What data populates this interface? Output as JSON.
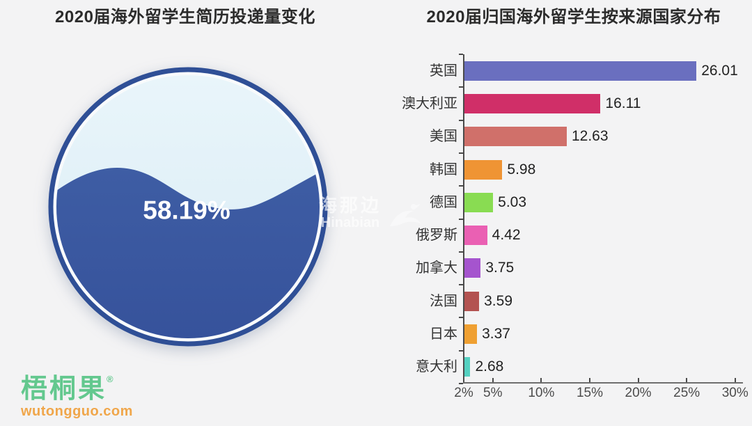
{
  "page": {
    "background_color": "#f3f3f4"
  },
  "chart_data": [
    {
      "type": "gauge",
      "subtype": "liquid-fill",
      "title": "2020届海外留学生简历投递量变化",
      "value": 58.19,
      "value_label": "58.19%",
      "colors": {
        "ring": "#2f4f96",
        "liquid": "#3a58a0",
        "empty": "#dfeef7",
        "gap": "#f9fbfc",
        "text": "#ffffff"
      }
    },
    {
      "type": "bar",
      "orientation": "horizontal",
      "title": "2020届归国海外留学生按来源国家分布",
      "categories": [
        "英国",
        "澳大利亚",
        "美国",
        "韩国",
        "德国",
        "俄罗斯",
        "加拿大",
        "法国",
        "日本",
        "意大利"
      ],
      "values": [
        26.01,
        16.11,
        12.63,
        5.98,
        5.03,
        4.42,
        3.75,
        3.59,
        3.37,
        2.68
      ],
      "value_labels": [
        "26.01",
        "16.11",
        "12.63",
        "5.98",
        "5.03",
        "4.42",
        "3.75",
        "3.59",
        "3.37",
        "2.68"
      ],
      "bar_colors": [
        "#6a6fbf",
        "#d02f68",
        "#d0706a",
        "#ef9434",
        "#89dc52",
        "#ea60b3",
        "#a554ce",
        "#b35351",
        "#efa032",
        "#55d1c1"
      ],
      "unit": "%",
      "x_axis": {
        "min": 2,
        "max": 30,
        "tick_values": [
          2,
          5,
          10,
          15,
          20,
          25,
          30
        ],
        "tick_labels": [
          "2%",
          "5%",
          "10%",
          "15%",
          "20%",
          "25%",
          "30%"
        ]
      },
      "grid": false,
      "legend": null
    }
  ],
  "watermark": {
    "line1": "海那边",
    "line2": "Hinabian"
  },
  "logo": {
    "name": "梧桐果",
    "registered_mark": "®",
    "site": "wutongguo.com",
    "name_color": "#63c88e",
    "site_color": "#f0a64a"
  }
}
